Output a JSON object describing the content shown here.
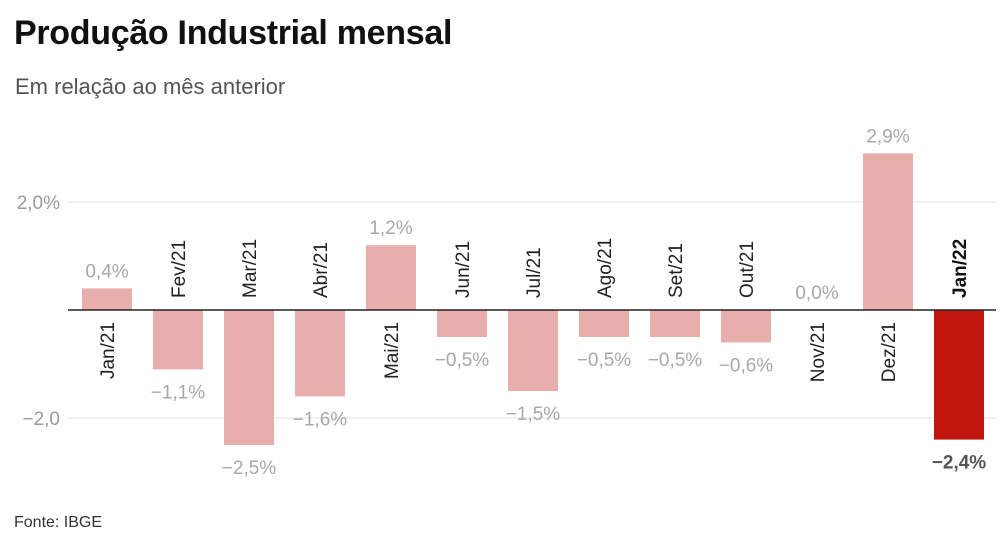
{
  "title": "Produção Industrial mensal",
  "subtitle": "Em relação ao mês anterior",
  "source": "Fonte: IBGE",
  "colors": {
    "bar": "#e8aeac",
    "highlight": "#c0170f",
    "grid": "#e0e0e0",
    "baseline": "#222222"
  },
  "chart_data": {
    "type": "bar",
    "title": "Produção Industrial mensal",
    "subtitle": "Em relação ao mês anterior",
    "categories": [
      "Jan/21",
      "Fev/21",
      "Mar/21",
      "Abr/21",
      "Mai/21",
      "Jun/21",
      "Jul/21",
      "Ago/21",
      "Set/21",
      "Out/21",
      "Nov/21",
      "Dez/21",
      "Jan/22"
    ],
    "values": [
      0.4,
      -1.1,
      -2.5,
      -1.6,
      1.2,
      -0.5,
      -1.5,
      -0.5,
      -0.5,
      -0.6,
      0.0,
      2.9,
      -2.4
    ],
    "value_labels": [
      "0,4%",
      "−1,1%",
      "−2,5%",
      "−1,6%",
      "1,2%",
      "−0,5%",
      "−1,5%",
      "−0,5%",
      "−0,5%",
      "−0,6%",
      "0,0%",
      "2,9%",
      "−2,4%"
    ],
    "highlight_index": 12,
    "y_ticks": [
      2.0,
      -2.0
    ],
    "y_tick_labels": [
      "2,0%",
      "−2,0"
    ],
    "ylim": [
      -2.6,
      3.1
    ],
    "xlabel": "",
    "ylabel": "",
    "grid": true
  }
}
